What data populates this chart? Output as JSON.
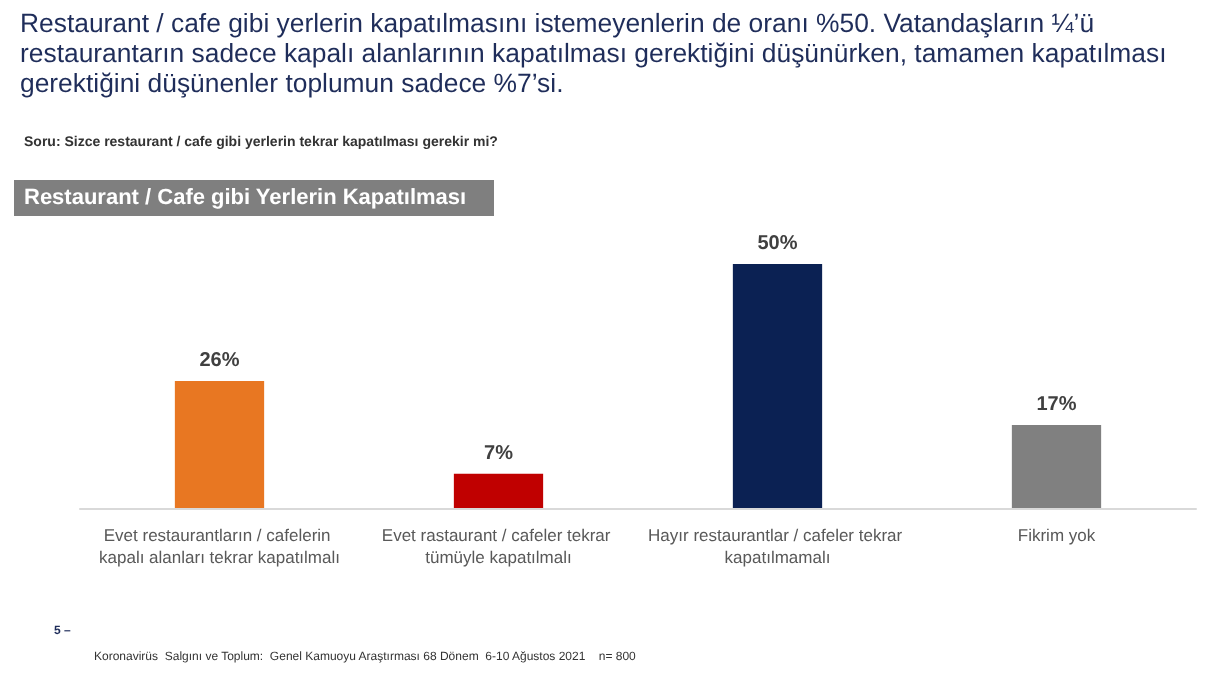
{
  "chart_data": {
    "type": "bar",
    "title": "Restaurant / cafe gibi yerlerin kapatılmasını istemeyenlerin de oranı %50. Vatandaşların ¼’ü restaurantarın sadece kapalı alanlarının kapatılması gerektiğini düşünürken, tamamen kapatılması gerektiğini düşünenler toplumun sadece %7’si.",
    "subtitle": "Soru: Sizce restaurant / cafe gibi yerlerin tekrar kapatılması gerekir mi?",
    "annotations": [
      "Restaurant / Cafe gibi Yerlerin Kapatılması",
      "5 –",
      "Koronavirüs  Salgını ve Toplum:  Genel Kamuoyu Araştırması 68 Dönem  6-10 Ağustos 2021    n= 800"
    ],
    "categories": [
      "Evet restaurantların / cafelerin kapalı alanları tekrar kapatılmalı",
      "Evet rastaurant / cafeler tekrar tümüyle kapatılmalı",
      "Hayır restaurantlar / cafeler tekrar kapatılmamalı",
      "Fikrim yok"
    ],
    "values": [
      26,
      7,
      50,
      17
    ],
    "colors": [
      "#e87722",
      "#c00000",
      "#0b2153",
      "#808080"
    ],
    "value_labels": [
      "26%",
      "7%",
      "50%",
      "17%"
    ]
  }
}
